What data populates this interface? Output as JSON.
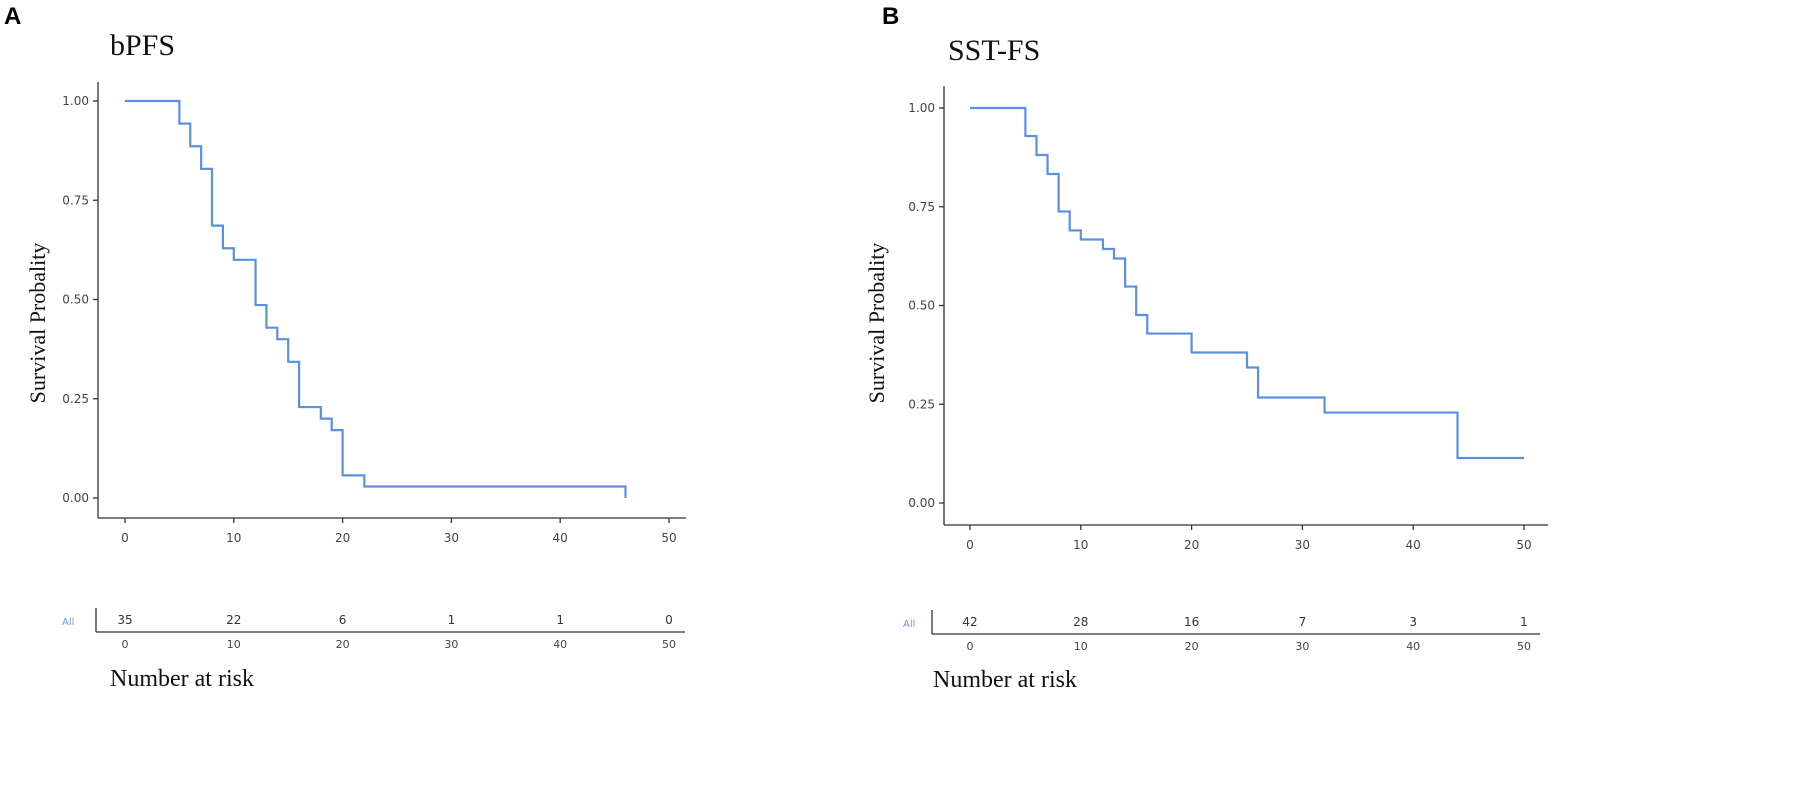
{
  "chart_data": [
    {
      "type": "line",
      "panel": "A",
      "title": "bPFS",
      "ylabel": "Survival Probality",
      "xlabel": "",
      "xlim": [
        0,
        50
      ],
      "ylim": [
        0,
        1
      ],
      "x_ticks": [
        "0",
        "10",
        "20",
        "30",
        "40",
        "50"
      ],
      "y_ticks": [
        "0.00",
        "0.25",
        "0.50",
        "0.75",
        "1.00"
      ],
      "series_color": "#5b8fe0",
      "steps": [
        [
          0,
          1.0
        ],
        [
          5,
          0.943
        ],
        [
          6,
          0.886
        ],
        [
          7,
          0.829
        ],
        [
          8,
          0.686
        ],
        [
          9,
          0.629
        ],
        [
          10,
          0.6
        ],
        [
          12,
          0.486
        ],
        [
          13,
          0.429
        ],
        [
          14,
          0.4
        ],
        [
          15,
          0.343
        ],
        [
          16,
          0.229
        ],
        [
          18,
          0.2
        ],
        [
          19,
          0.171
        ],
        [
          20,
          0.057
        ],
        [
          22,
          0.029
        ],
        [
          46,
          0.0
        ]
      ],
      "risk_table": {
        "strata_label": "All",
        "title": "Number at risk",
        "values": [
          "35",
          "22",
          "6",
          "1",
          "1",
          "0"
        ]
      }
    },
    {
      "type": "line",
      "panel": "B",
      "title": "SST-FS",
      "ylabel": "Survival Probality",
      "xlabel": "",
      "xlim": [
        0,
        50
      ],
      "ylim": [
        0,
        1
      ],
      "x_ticks": [
        "0",
        "10",
        "20",
        "30",
        "40",
        "50"
      ],
      "y_ticks": [
        "0.00",
        "0.25",
        "0.50",
        "0.75",
        "1.00"
      ],
      "series_color": "#5b8fe0",
      "steps": [
        [
          0,
          1.0
        ],
        [
          5,
          0.929
        ],
        [
          6,
          0.881
        ],
        [
          7,
          0.833
        ],
        [
          8,
          0.738
        ],
        [
          9,
          0.69
        ],
        [
          10,
          0.667
        ],
        [
          12,
          0.643
        ],
        [
          13,
          0.619
        ],
        [
          14,
          0.548
        ],
        [
          15,
          0.476
        ],
        [
          16,
          0.429
        ],
        [
          20,
          0.381
        ],
        [
          25,
          0.343
        ],
        [
          26,
          0.267
        ],
        [
          32,
          0.229
        ],
        [
          44,
          0.114
        ],
        [
          50,
          0.114
        ]
      ],
      "risk_table": {
        "strata_label": "All",
        "title": "Number at risk",
        "values": [
          "42",
          "28",
          "16",
          "7",
          "3",
          "1"
        ]
      }
    }
  ]
}
